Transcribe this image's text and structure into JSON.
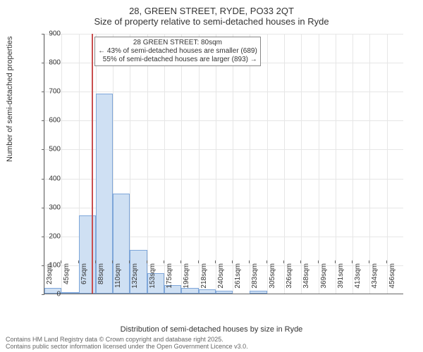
{
  "title_line1": "28, GREEN STREET, RYDE, PO33 2QT",
  "title_line2": "Size of property relative to semi-detached houses in Ryde",
  "ylabel": "Number of semi-detached properties",
  "xlabel": "Distribution of semi-detached houses by size in Ryde",
  "footer_line1": "Contains HM Land Registry data © Crown copyright and database right 2025.",
  "footer_line2": "Contains public sector information licensed under the Open Government Licence v3.0.",
  "chart": {
    "type": "histogram",
    "ylim": [
      0,
      900
    ],
    "ytick_step": 100,
    "yticks": [
      0,
      100,
      200,
      300,
      400,
      500,
      600,
      700,
      800,
      900
    ],
    "xticks": [
      "23sqm",
      "45sqm",
      "67sqm",
      "88sqm",
      "110sqm",
      "132sqm",
      "153sqm",
      "175sqm",
      "196sqm",
      "218sqm",
      "240sqm",
      "261sqm",
      "283sqm",
      "305sqm",
      "326sqm",
      "348sqm",
      "369sqm",
      "391sqm",
      "413sqm",
      "434sqm",
      "456sqm"
    ],
    "values": [
      20,
      5,
      270,
      690,
      345,
      150,
      70,
      30,
      20,
      15,
      10,
      0,
      10,
      0,
      0,
      0,
      0,
      0,
      0,
      0,
      0
    ],
    "bar_color": "#cfe0f3",
    "bar_border": "#7ea6d9",
    "grid_color": "#e6e6e6",
    "background_color": "#ffffff",
    "marker": {
      "value_sqm": 80,
      "color": "#c94f4f",
      "fraction": 0.1316
    },
    "annotation": {
      "line1": "28 GREEN STREET: 80sqm",
      "line2": "← 43% of semi-detached houses are smaller (689)",
      "line3": "55% of semi-detached houses are larger (893) →",
      "border_color": "#888888",
      "background": "#ffffff",
      "fontsize": 10
    },
    "title_fontsize": 13,
    "label_fontsize": 11,
    "tick_fontsize": 10
  }
}
